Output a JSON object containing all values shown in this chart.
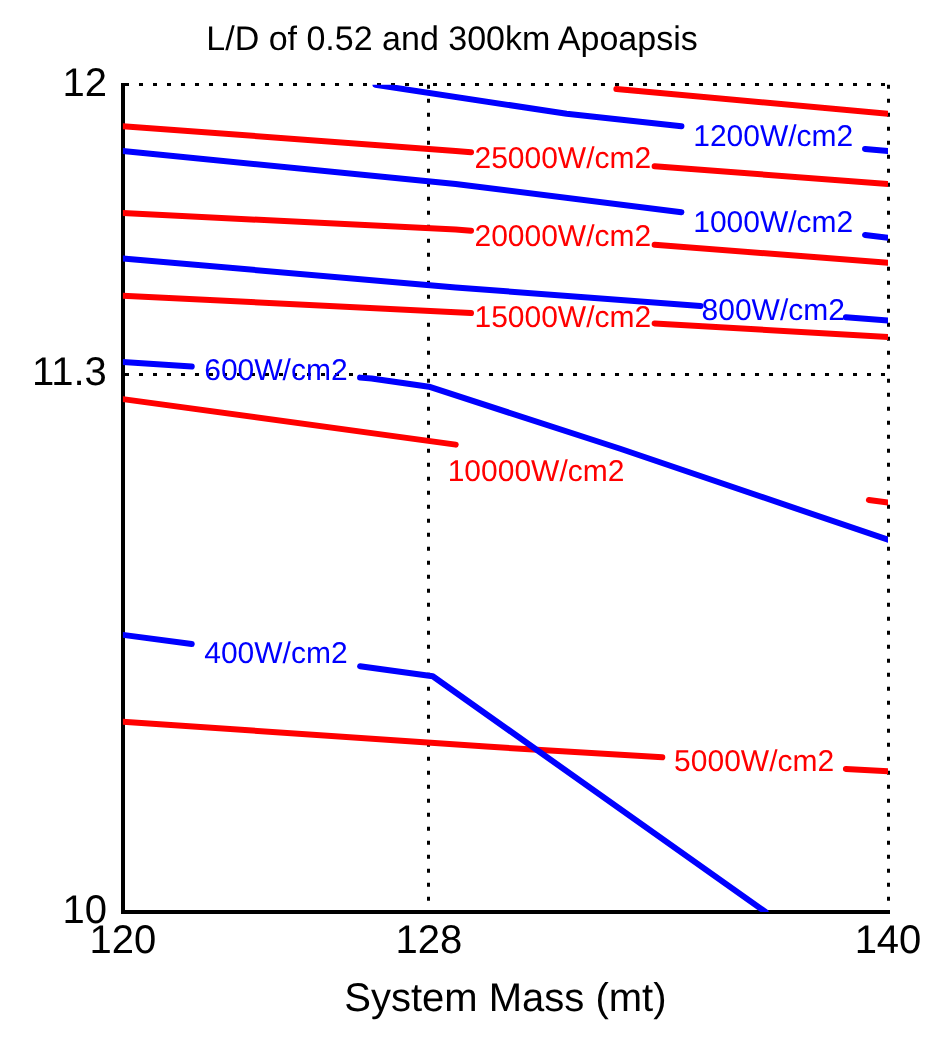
{
  "chart_data": {
    "type": "line",
    "title": "L/D of 0.52 and 300km Apoapsis",
    "xlabel": "System Mass (mt)",
    "xlim": [
      120,
      140
    ],
    "xticks": [
      120,
      128,
      140
    ],
    "ylim": [
      10,
      12
    ],
    "yticks": [
      10,
      11.3,
      12
    ],
    "grid": true,
    "legend": false,
    "marker": "none",
    "line_style": "solid",
    "series": [
      {
        "color": "#ff0000",
        "x": [
          132.9,
          140
        ],
        "values": [
          11.99,
          11.93
        ]
      },
      {
        "name": "1200W/cm2",
        "color": "#0000ff",
        "x": [
          126.6,
          131.6,
          134.6,
          137,
          139.4,
          140
        ],
        "values": [
          12.0,
          11.93,
          11.9,
          null,
          11.845,
          11.84
        ]
      },
      {
        "name": "25000W/cm2",
        "color": "#ff0000",
        "x": [
          120,
          128.7,
          129.1,
          131.5,
          133.9,
          140
        ],
        "values": [
          11.9,
          11.84,
          11.837,
          null,
          11.803,
          11.76
        ]
      },
      {
        "name": "1000W/cm2",
        "color": "#0000ff",
        "x": [
          120,
          128.7,
          134.6,
          137,
          139.4,
          140
        ],
        "values": [
          11.84,
          11.76,
          11.692,
          null,
          11.637,
          11.63
        ]
      },
      {
        "name": "20000W/cm2",
        "color": "#ff0000",
        "x": [
          120,
          128.7,
          129.1,
          131.5,
          133.9,
          140
        ],
        "values": [
          11.69,
          11.65,
          11.647,
          null,
          11.613,
          11.57
        ]
      },
      {
        "name": "800W/cm2",
        "color": "#0000ff",
        "x": [
          120,
          128.7,
          135.1,
          137,
          138.9,
          140
        ],
        "values": [
          11.58,
          11.51,
          11.465,
          null,
          11.438,
          11.43
        ]
      },
      {
        "name": "15000W/cm2",
        "color": "#ff0000",
        "x": [
          120,
          128.7,
          129.1,
          131.5,
          133.9,
          140
        ],
        "values": [
          11.49,
          11.45,
          11.448,
          null,
          11.423,
          11.39
        ]
      },
      {
        "name": "600W/cm2",
        "color": "#0000ff",
        "x": [
          120,
          121.8,
          124,
          126.2,
          126.5,
          128,
          133,
          140
        ],
        "values": [
          11.33,
          11.319,
          null,
          11.292,
          11.29,
          11.27,
          11.12,
          10.9
        ]
      },
      {
        "name": "10000W/cm2",
        "color": "#ff0000",
        "x": [
          120,
          128.7,
          130.8,
          139.5,
          140
        ],
        "values": [
          11.24,
          11.13,
          null,
          10.996,
          10.99
        ]
      },
      {
        "name": "400W/cm2",
        "color": "#0000ff",
        "x": [
          120,
          121.8,
          124,
          126.2,
          128.1,
          136.8
        ],
        "values": [
          10.67,
          10.648,
          null,
          10.594,
          10.57,
          10.0
        ]
      },
      {
        "name": "5000W/cm2",
        "color": "#ff0000",
        "x": [
          120,
          129.5,
          134.1,
          136.5,
          138.9,
          140
        ],
        "values": [
          10.46,
          10.4,
          10.374,
          null,
          10.346,
          10.34
        ]
      }
    ]
  }
}
